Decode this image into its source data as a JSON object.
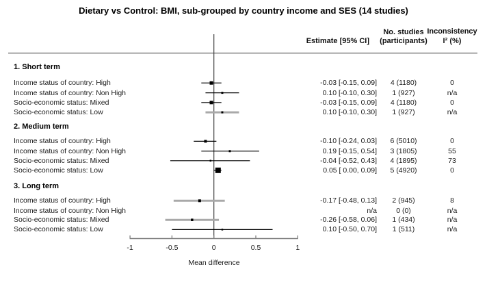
{
  "title": "Dietary vs Control: BMI, sub-grouped by country income and SES (14 studies)",
  "colors": {
    "marker": "#000000",
    "ci_black": "#000000",
    "ci_gray": "#a9a9a9",
    "axis": "#7f7f7f",
    "zero_line": "#3f3f3f",
    "text": "#1a1a1a"
  },
  "chart_data": {
    "type": "forest",
    "title": "Dietary vs Control: BMI, sub-grouped by country income and SES (14 studies)",
    "xlabel": "Mean difference",
    "xlim": [
      -1,
      1
    ],
    "x_ticks": [
      {
        "v": -1,
        "label": "-1"
      },
      {
        "v": -0.5,
        "label": "-0.5"
      },
      {
        "v": 0,
        "label": "0"
      },
      {
        "v": 0.5,
        "label": "0.5"
      },
      {
        "v": 1,
        "label": "1"
      }
    ],
    "columns": {
      "estimate": "Estimate [95% CI]",
      "studies_line1": "No. studies",
      "studies_line2": "(participants)",
      "inconsistency_line1": "Inconsistency",
      "inconsistency_line2": "I² (%)"
    },
    "groups": [
      {
        "label": "1. Short term",
        "rows": [
          {
            "label": "Income status of country: High",
            "estimate": -0.03,
            "ci_low": -0.15,
            "ci_high": 0.09,
            "estimate_text": "-0.03 [-0.15, 0.09]",
            "studies": "4 (1180)",
            "i2": "0",
            "marker_size": 5,
            "ci_style": "black"
          },
          {
            "label": "Income status of country: Non High",
            "estimate": 0.1,
            "ci_low": -0.1,
            "ci_high": 0.3,
            "estimate_text": "0.10 [-0.10, 0.30]",
            "studies": "1 (927)",
            "i2": "n/a",
            "marker_size": 3,
            "ci_style": "black"
          },
          {
            "label": "Socio-economic status: Mixed",
            "estimate": -0.03,
            "ci_low": -0.15,
            "ci_high": 0.09,
            "estimate_text": "-0.03 [-0.15, 0.09]",
            "studies": "4 (1180)",
            "i2": "0",
            "marker_size": 5,
            "ci_style": "black"
          },
          {
            "label": "Socio-economic status: Low",
            "estimate": 0.1,
            "ci_low": -0.1,
            "ci_high": 0.3,
            "estimate_text": "0.10 [-0.10, 0.30]",
            "studies": "1 (927)",
            "i2": "n/a",
            "marker_size": 3,
            "ci_style": "gray"
          }
        ]
      },
      {
        "label": "2. Medium term",
        "rows": [
          {
            "label": "Income status of country: High",
            "estimate": -0.1,
            "ci_low": -0.24,
            "ci_high": 0.03,
            "estimate_text": "-0.10 [-0.24, 0.03]",
            "studies": "6 (5010)",
            "i2": "0",
            "marker_size": 4,
            "ci_style": "black"
          },
          {
            "label": "Income status of country: Non High",
            "estimate": 0.19,
            "ci_low": -0.15,
            "ci_high": 0.54,
            "estimate_text": "0.19 [-0.15, 0.54]",
            "studies": "3 (1805)",
            "i2": "55",
            "marker_size": 3,
            "ci_style": "black"
          },
          {
            "label": "Socio-economic status: Mixed",
            "estimate": -0.04,
            "ci_low": -0.52,
            "ci_high": 0.43,
            "estimate_text": "-0.04 [-0.52, 0.43]",
            "studies": "4 (1895)",
            "i2": "73",
            "marker_size": 2.5,
            "ci_style": "black"
          },
          {
            "label": "Socio-economic status: Low",
            "estimate": 0.05,
            "ci_low": 0.0,
            "ci_high": 0.09,
            "estimate_text": "0.05 [ 0.00, 0.09]",
            "studies": "5 (4920)",
            "i2": "0",
            "marker_size": 8,
            "ci_style": "black"
          }
        ]
      },
      {
        "label": "3. Long term",
        "rows": [
          {
            "label": "Income status of country: High",
            "estimate": -0.17,
            "ci_low": -0.48,
            "ci_high": 0.13,
            "estimate_text": "-0.17 [-0.48, 0.13]",
            "studies": "2 (945)",
            "i2": "8",
            "marker_size": 4,
            "ci_style": "gray"
          },
          {
            "label": "Income status of country: Non High",
            "estimate": null,
            "ci_low": null,
            "ci_high": null,
            "estimate_text": "n/a",
            "studies": "0 (0)",
            "i2": "n/a",
            "marker_size": null,
            "ci_style": null
          },
          {
            "label": "Socio-economic status: Mixed",
            "estimate": -0.26,
            "ci_low": -0.58,
            "ci_high": 0.06,
            "estimate_text": "-0.26 [-0.58, 0.06]",
            "studies": "1 (434)",
            "i2": "n/a",
            "marker_size": 3.5,
            "ci_style": "gray"
          },
          {
            "label": "Socio-economic status: Low",
            "estimate": 0.1,
            "ci_low": -0.5,
            "ci_high": 0.7,
            "estimate_text": "0.10 [-0.50, 0.70]",
            "studies": "1 (511)",
            "i2": "n/a",
            "marker_size": 2.5,
            "ci_style": "black"
          }
        ]
      }
    ]
  }
}
